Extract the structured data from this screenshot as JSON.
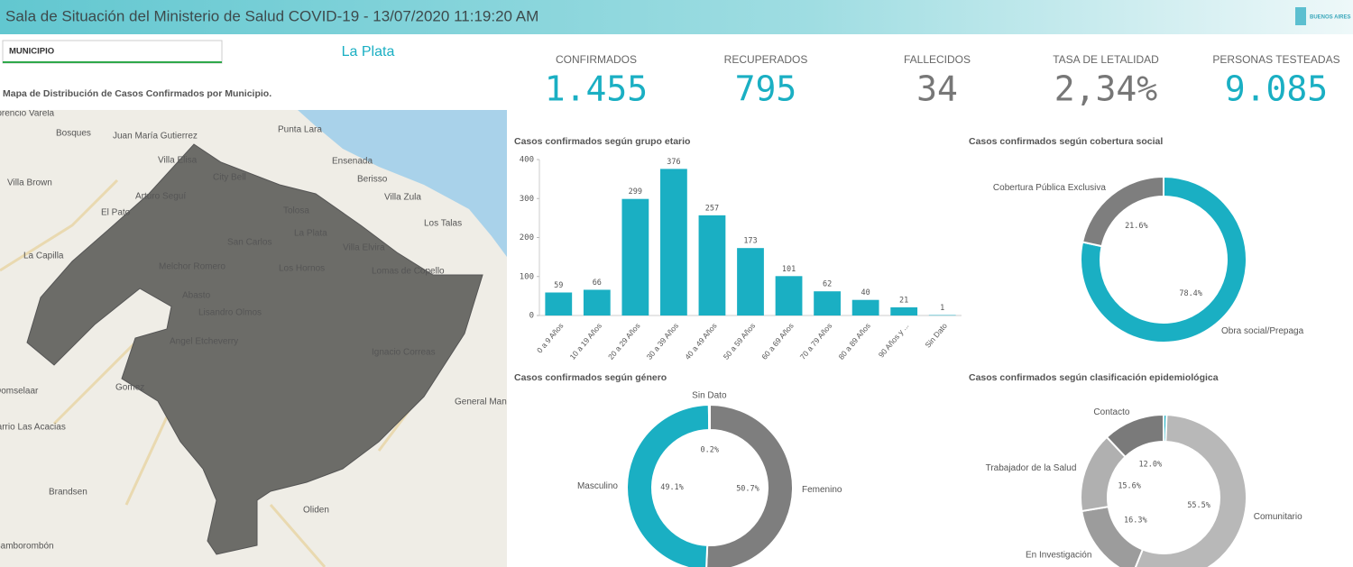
{
  "header": {
    "title": "Sala de Situación del Ministerio de Salud COVID-19 - 13/07/2020 11:19:20 AM",
    "logo": "BUENOS AIRES"
  },
  "filter": {
    "label": "MUNICIPIO",
    "selected": "La Plata"
  },
  "map": {
    "title": "Mapa de Distribución de Casos Confirmados por Municipio.",
    "places": [
      "Florencio Varela",
      "Bosques",
      "Juan María Gutierrez",
      "Punta Lara",
      "Villa Elisa",
      "Ensenada",
      "Villa Brown",
      "City Bell",
      "Berisso",
      "Villa Zula",
      "Arturo Seguí",
      "El Pato",
      "Tolosa",
      "Los Talas",
      "La Plata",
      "San Carlos",
      "Villa Elvira",
      "La Capilla",
      "Melchor Romero",
      "Los Hornos",
      "Lomas de Copello",
      "Abasto",
      "Lisandro Olmos",
      "Angel Etcheverry",
      "Ignacio Correas",
      "Gomez",
      "Domselaar",
      "General Mansilla",
      "Barrio Las Acacias",
      "Brandsen",
      "Oliden",
      "Samborombón"
    ]
  },
  "kpis": [
    {
      "label": "CONFIRMADOS",
      "value": "1.455",
      "color": "#1aafc3"
    },
    {
      "label": "RECUPERADOS",
      "value": "795",
      "color": "#1aafc3"
    },
    {
      "label": "FALLECIDOS",
      "value": "34",
      "color": "#777777"
    },
    {
      "label": "TASA DE LETALIDAD",
      "value": "2,34%",
      "color": "#777777"
    },
    {
      "label": "PERSONAS TESTEADAS",
      "value": "9.085",
      "color": "#1aafc3"
    }
  ],
  "chart_data": [
    {
      "type": "bar",
      "title": "Casos confirmados según grupo etario",
      "categories": [
        "0 a 9 Años",
        "10 a 19 Años",
        "20 a 29 Años",
        "30 a 39 Años",
        "40 a 49 Años",
        "50 a 59 Años",
        "60 a 69 Años",
        "70 a 79 Años",
        "80 a 89 Años",
        "90 Años y ...",
        "Sin Dato"
      ],
      "values": [
        59,
        66,
        299,
        376,
        257,
        173,
        101,
        62,
        40,
        21,
        1
      ],
      "color": "#1aafc3",
      "ylim": [
        0,
        400
      ],
      "yticks": [
        0,
        100,
        200,
        300,
        400
      ]
    },
    {
      "type": "pie",
      "title": "Casos confirmados según cobertura social",
      "categories": [
        "Obra social/Prepaga",
        "Cobertura Pública Exclusiva"
      ],
      "values": [
        78.4,
        21.6
      ],
      "value_labels": [
        "78.4%",
        "21.6%"
      ],
      "colors": [
        "#1aafc3",
        "#7e7e7e"
      ]
    },
    {
      "type": "pie",
      "title": "Casos confirmados según género",
      "categories": [
        "Femenino",
        "Masculino",
        "Sin Dato"
      ],
      "values": [
        50.7,
        49.1,
        0.2
      ],
      "value_labels": [
        "50.7%",
        "49.1%",
        "0.2%"
      ],
      "colors": [
        "#7e7e7e",
        "#1aafc3",
        "#bdbdbd"
      ]
    },
    {
      "type": "pie",
      "title": "Casos confirmados según clasificación epidemiológica",
      "categories": [
        null,
        "Comunitario",
        "En Investigación",
        "Trabajador de la Salud",
        "Contacto"
      ],
      "values": [
        0.6,
        55.5,
        16.3,
        15.6,
        12.0
      ],
      "value_labels": [
        null,
        "55.5%",
        "16.3%",
        "15.6%",
        "12.0%"
      ],
      "colors": [
        "#1aafc3",
        "#b8b8b8",
        "#9c9c9c",
        "#b0b0b0",
        "#7a7a7a"
      ]
    }
  ]
}
